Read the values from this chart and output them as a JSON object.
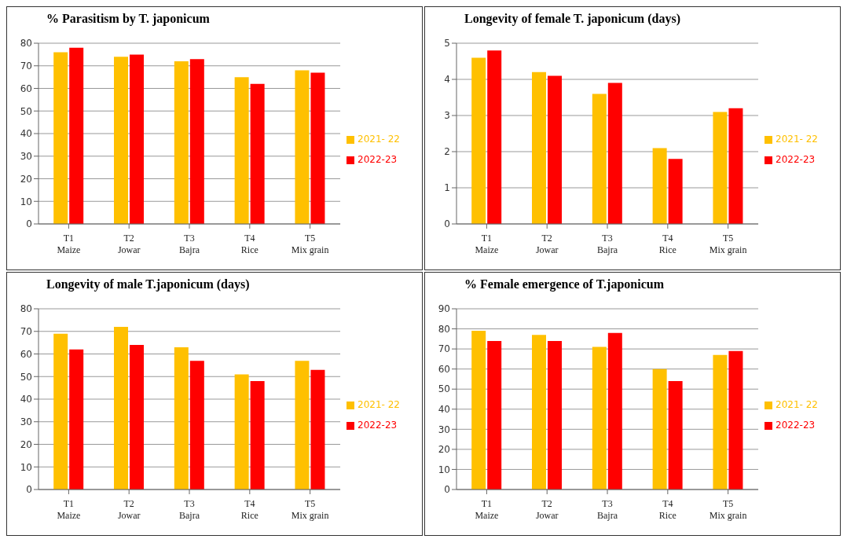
{
  "chart_data": [
    {
      "type": "bar",
      "title": "% Parasitism by T. japonicum",
      "categories": [
        "T1 Maize",
        "T2 Jowar",
        "T3 Bajra",
        "T4 Rice",
        "T5 Mix grain"
      ],
      "series": [
        {
          "name": "2021- 22",
          "color": "#ffc000",
          "values": [
            76,
            74,
            72,
            65,
            68
          ]
        },
        {
          "name": "2022-23",
          "color": "#ff0000",
          "values": [
            78,
            75,
            73,
            62,
            67
          ]
        }
      ],
      "ylim": [
        0,
        80
      ],
      "yticks": [
        0,
        10,
        20,
        30,
        40,
        50,
        60,
        70,
        80
      ],
      "grid": "y",
      "legend": "right"
    },
    {
      "type": "bar",
      "title": "Longevity of female  T. japonicum (days)",
      "categories": [
        "T1 Maize",
        "T2 Jowar",
        "T3 Bajra",
        "T4 Rice",
        "T5 Mix grain"
      ],
      "series": [
        {
          "name": "2021- 22",
          "color": "#ffc000",
          "values": [
            4.6,
            4.2,
            3.6,
            2.1,
            3.1
          ]
        },
        {
          "name": "2022-23",
          "color": "#ff0000",
          "values": [
            4.8,
            4.1,
            3.9,
            1.8,
            3.2
          ]
        }
      ],
      "ylim": [
        0,
        5
      ],
      "yticks": [
        0,
        1,
        2,
        3,
        4,
        5
      ],
      "grid": "y",
      "legend": "right"
    },
    {
      "type": "bar",
      "title": "Longevity of male T.japonicum (days)",
      "categories": [
        "T1 Maize",
        "T2 Jowar",
        "T3 Bajra",
        "T4 Rice",
        "T5 Mix grain"
      ],
      "series": [
        {
          "name": "2021- 22",
          "color": "#ffc000",
          "values": [
            69,
            72,
            63,
            51,
            57
          ]
        },
        {
          "name": "2022-23",
          "color": "#ff0000",
          "values": [
            62,
            64,
            57,
            48,
            53
          ]
        }
      ],
      "ylim": [
        0,
        80
      ],
      "yticks": [
        0,
        10,
        20,
        30,
        40,
        50,
        60,
        70,
        80
      ],
      "grid": "y",
      "legend": "right"
    },
    {
      "type": "bar",
      "title": "% Female emergence of T.japonicum",
      "categories": [
        "T1 Maize",
        "T2 Jowar",
        "T3 Bajra",
        "T4 Rice",
        "T5 Mix grain"
      ],
      "series": [
        {
          "name": "2021- 22",
          "color": "#ffc000",
          "values": [
            79,
            77,
            71,
            60,
            67
          ]
        },
        {
          "name": "2022-23",
          "color": "#ff0000",
          "values": [
            74,
            74,
            78,
            54,
            69
          ]
        }
      ],
      "ylim": [
        0,
        90
      ],
      "yticks": [
        0,
        10,
        20,
        30,
        40,
        50,
        60,
        70,
        80,
        90
      ],
      "grid": "y",
      "legend": "right"
    }
  ]
}
